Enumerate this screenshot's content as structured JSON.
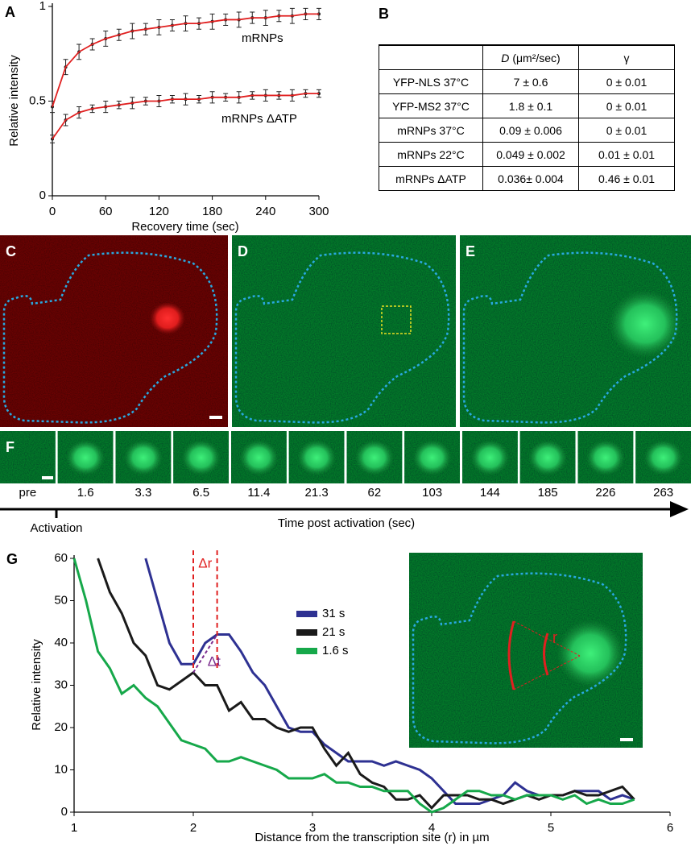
{
  "panels": {
    "a": "A",
    "b": "B",
    "c": "C",
    "d": "D",
    "e": "E",
    "f": "F",
    "g": "G"
  },
  "table": {
    "header": {
      "d_symbol": "D",
      "d_unit": "(μm²/sec)",
      "gamma": "γ"
    },
    "rows": [
      [
        "YFP-NLS 37°C",
        "7 ± 0.6",
        "0 ± 0.01"
      ],
      [
        "YFP-MS2 37°C",
        "1.8 ± 0.1",
        "0 ± 0.01"
      ],
      [
        "mRNPs 37°C",
        "0.09 ± 0.006",
        "0 ± 0.01"
      ],
      [
        "mRNPs 22°C",
        "0.049 ± 0.002",
        "0.01 ± 0.01"
      ],
      [
        "mRNPs ΔATP",
        "0.036± 0.004",
        "0.46 ± 0.01"
      ]
    ]
  },
  "timeline": {
    "labels": [
      "pre",
      "1.6",
      "3.3",
      "6.5",
      "11.4",
      "21.3",
      "62",
      "103",
      "144",
      "185",
      "226",
      "263"
    ],
    "activation": "Activation",
    "axis_label": "Time post activation (sec)"
  },
  "inset": {
    "label": "r"
  },
  "chart_data": [
    {
      "type": "line",
      "x_label": "Recovery time (sec)",
      "y_label": "Relative intensity",
      "x": [
        0,
        15,
        30,
        45,
        60,
        75,
        90,
        105,
        120,
        135,
        150,
        165,
        180,
        195,
        210,
        225,
        240,
        255,
        270,
        285,
        300
      ],
      "xlim": [
        0,
        300
      ],
      "ylim": [
        0,
        1
      ],
      "xticks": [
        0,
        60,
        120,
        180,
        240,
        300
      ],
      "yticks": [
        0,
        0.5,
        1
      ],
      "series": [
        {
          "name": "mRNPs",
          "color": "#222222",
          "values": [
            0.47,
            0.68,
            0.76,
            0.8,
            0.83,
            0.85,
            0.87,
            0.88,
            0.89,
            0.9,
            0.91,
            0.91,
            0.92,
            0.93,
            0.93,
            0.94,
            0.94,
            0.95,
            0.95,
            0.96,
            0.96
          ],
          "errors": [
            0.03,
            0.04,
            0.04,
            0.03,
            0.04,
            0.03,
            0.04,
            0.03,
            0.04,
            0.03,
            0.04,
            0.03,
            0.04,
            0.03,
            0.04,
            0.03,
            0.04,
            0.03,
            0.04,
            0.03,
            0.03
          ]
        },
        {
          "name": "mRNPs ΔATP",
          "color": "#222222",
          "values": [
            0.3,
            0.4,
            0.44,
            0.46,
            0.47,
            0.48,
            0.49,
            0.5,
            0.5,
            0.51,
            0.51,
            0.51,
            0.52,
            0.52,
            0.52,
            0.53,
            0.53,
            0.53,
            0.53,
            0.54,
            0.54
          ],
          "errors": [
            0.02,
            0.03,
            0.03,
            0.02,
            0.03,
            0.02,
            0.03,
            0.02,
            0.03,
            0.02,
            0.03,
            0.02,
            0.03,
            0.02,
            0.03,
            0.02,
            0.03,
            0.02,
            0.03,
            0.02,
            0.02
          ]
        },
        {
          "color": "#e02020",
          "values": [
            0.47,
            0.68,
            0.76,
            0.8,
            0.83,
            0.85,
            0.87,
            0.88,
            0.89,
            0.9,
            0.91,
            0.91,
            0.92,
            0.93,
            0.93,
            0.94,
            0.94,
            0.95,
            0.95,
            0.96,
            0.96
          ]
        },
        {
          "color": "#e02020",
          "values": [
            0.3,
            0.4,
            0.44,
            0.46,
            0.47,
            0.48,
            0.49,
            0.5,
            0.5,
            0.51,
            0.51,
            0.51,
            0.52,
            0.52,
            0.52,
            0.53,
            0.53,
            0.53,
            0.53,
            0.54,
            0.54
          ]
        }
      ]
    },
    {
      "type": "line",
      "x_label": "Distance from the transcription site (r) in µm",
      "y_label": "Relative intensity",
      "annotations": {
        "delta_r": "Δr",
        "delta_t": "Δt"
      },
      "x": [
        1.0,
        1.1,
        1.2,
        1.3,
        1.4,
        1.5,
        1.6,
        1.7,
        1.8,
        1.9,
        2.0,
        2.1,
        2.2,
        2.3,
        2.4,
        2.5,
        2.6,
        2.7,
        2.8,
        2.9,
        3.0,
        3.1,
        3.2,
        3.3,
        3.4,
        3.5,
        3.6,
        3.7,
        3.8,
        3.9,
        4.0,
        4.1,
        4.2,
        4.3,
        4.4,
        4.5,
        4.6,
        4.7,
        4.8,
        4.9,
        5.0,
        5.1,
        5.2,
        5.3,
        5.4,
        5.5,
        5.6,
        5.7
      ],
      "xlim": [
        1,
        6
      ],
      "ylim": [
        0,
        60
      ],
      "xticks": [
        1,
        2,
        3,
        4,
        5,
        6
      ],
      "yticks": [
        0,
        10,
        20,
        30,
        40,
        50,
        60
      ],
      "series": [
        {
          "name": "31 s",
          "color": "#2e3192",
          "values": [
            null,
            null,
            null,
            null,
            null,
            null,
            60,
            50,
            40,
            35,
            35,
            40,
            42,
            42,
            38,
            33,
            30,
            25,
            20,
            19,
            19,
            16,
            14,
            12,
            12,
            12,
            11,
            12,
            11,
            10,
            8,
            5,
            2,
            2,
            2,
            3,
            4,
            7,
            5,
            4,
            4,
            4,
            5,
            5,
            5,
            3,
            4,
            3
          ]
        },
        {
          "name": "21 s",
          "color": "#1a1a1a",
          "values": [
            null,
            null,
            60,
            52,
            47,
            40,
            37,
            30,
            29,
            31,
            33,
            30,
            30,
            24,
            26,
            22,
            22,
            20,
            19,
            20,
            20,
            15,
            11,
            14,
            9,
            7,
            6,
            3,
            3,
            4,
            1,
            4,
            4,
            4,
            3,
            3,
            2,
            3,
            4,
            3,
            4,
            4,
            5,
            4,
            4,
            5,
            6,
            3
          ]
        },
        {
          "name": "1.6 s",
          "color": "#16a84a",
          "values": [
            60,
            50,
            38,
            34,
            28,
            30,
            27,
            25,
            21,
            17,
            16,
            15,
            12,
            12,
            13,
            12,
            11,
            10,
            8,
            8,
            8,
            9,
            7,
            7,
            6,
            6,
            5,
            5,
            5,
            2,
            0,
            1,
            3,
            5,
            5,
            4,
            4,
            3,
            4,
            4,
            4,
            3,
            4,
            2,
            3,
            2,
            2,
            3
          ]
        }
      ]
    }
  ]
}
